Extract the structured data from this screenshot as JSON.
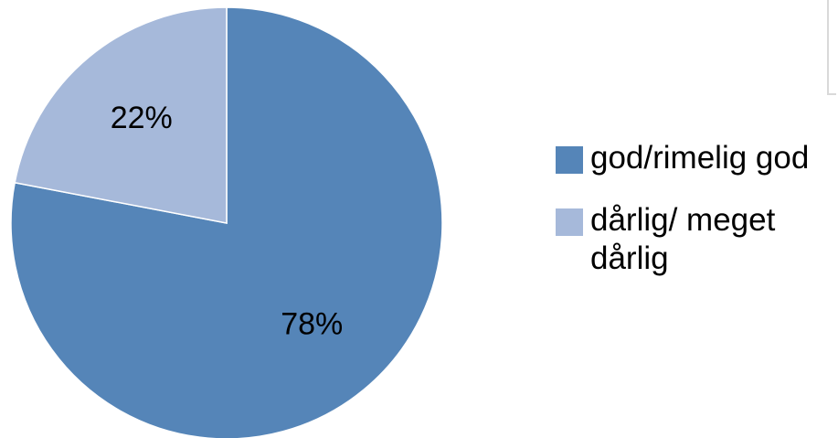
{
  "chart_data": {
    "type": "pie",
    "title": "",
    "slices": [
      {
        "label": "god/rimelig god",
        "value": 78,
        "display": "78%",
        "color": "#5585b8"
      },
      {
        "label": "dårlig/ meget dårlig",
        "value": 22,
        "display": "22%",
        "color": "#a6b9da"
      }
    ],
    "legend_position": "right",
    "start_angle_deg": 0,
    "direction": "clockwise"
  }
}
